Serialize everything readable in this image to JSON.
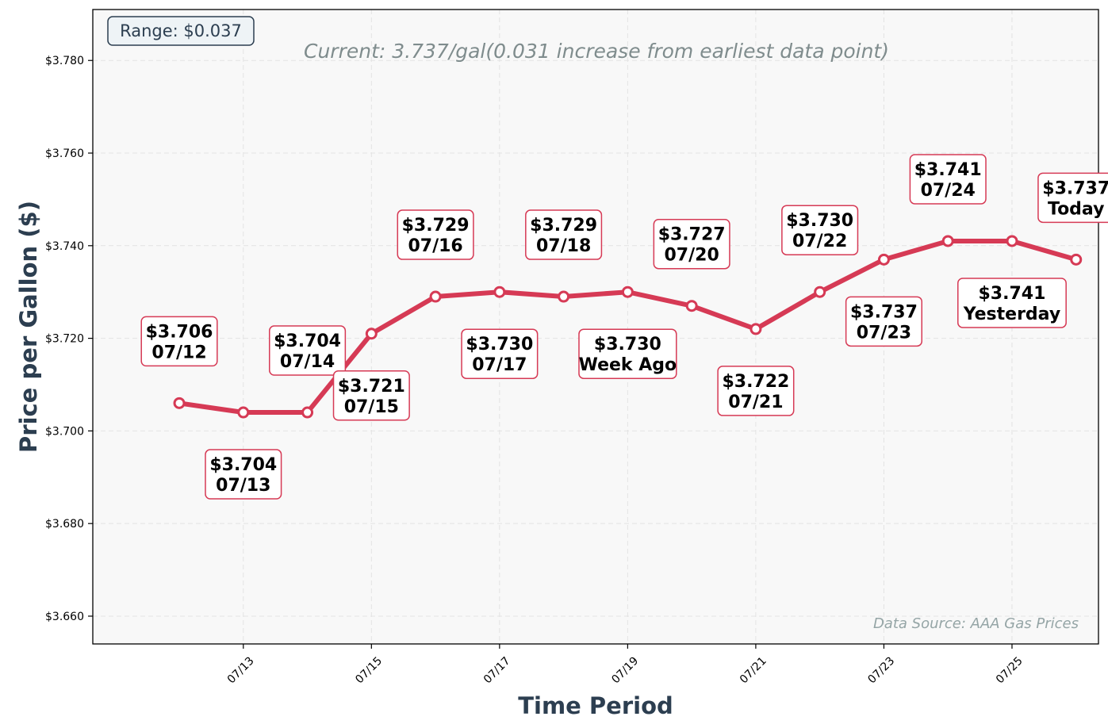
{
  "chart_data": {
    "type": "line",
    "title": "",
    "xlabel": "Time Period",
    "ylabel": "Price per Gallon ($)",
    "subtitle": "Current: 3.737/gal(0.031 increase from earliest data point)",
    "range_text": "Range: $0.037",
    "source_text": "Data Source: AAA Gas Prices",
    "xlim": [
      "07/11",
      "07/26"
    ],
    "ylim": [
      3.654,
      3.791
    ],
    "grid": true,
    "line_color": "#d63a55",
    "x_ticks": [
      "07/13",
      "07/15",
      "07/17",
      "07/19",
      "07/21",
      "07/23",
      "07/25"
    ],
    "y_ticks": [
      "$3.660",
      "$3.680",
      "$3.700",
      "$3.720",
      "$3.740",
      "$3.760",
      "$3.780"
    ],
    "series": [
      {
        "points": [
          {
            "x": "07/12",
            "y": 3.706,
            "label_price": "$3.706",
            "label_name": "07/12",
            "label_pos": "above"
          },
          {
            "x": "07/13",
            "y": 3.704,
            "label_price": "$3.704",
            "label_name": "07/13",
            "label_pos": "below"
          },
          {
            "x": "07/14",
            "y": 3.704,
            "label_price": "$3.704",
            "label_name": "07/14",
            "label_pos": "above"
          },
          {
            "x": "07/15",
            "y": 3.721,
            "label_price": "$3.721",
            "label_name": "07/15",
            "label_pos": "below"
          },
          {
            "x": "07/16",
            "y": 3.729,
            "label_price": "$3.729",
            "label_name": "07/16",
            "label_pos": "above"
          },
          {
            "x": "07/17",
            "y": 3.73,
            "label_price": "$3.730",
            "label_name": "07/17",
            "label_pos": "below"
          },
          {
            "x": "07/18",
            "y": 3.729,
            "label_price": "$3.729",
            "label_name": "07/18",
            "label_pos": "above"
          },
          {
            "x": "07/19",
            "y": 3.73,
            "label_price": "$3.730",
            "label_name": "Week Ago",
            "label_pos": "below"
          },
          {
            "x": "07/20",
            "y": 3.727,
            "label_price": "$3.727",
            "label_name": "07/20",
            "label_pos": "above"
          },
          {
            "x": "07/21",
            "y": 3.722,
            "label_price": "$3.722",
            "label_name": "07/21",
            "label_pos": "below"
          },
          {
            "x": "07/22",
            "y": 3.73,
            "label_price": "$3.730",
            "label_name": "07/22",
            "label_pos": "above"
          },
          {
            "x": "07/23",
            "y": 3.737,
            "label_price": "$3.737",
            "label_name": "07/23",
            "label_pos": "below"
          },
          {
            "x": "07/24",
            "y": 3.741,
            "label_price": "$3.741",
            "label_name": "07/24",
            "label_pos": "above"
          },
          {
            "x": "07/25",
            "y": 3.741,
            "label_price": "$3.741",
            "label_name": "Yesterday",
            "label_pos": "below"
          },
          {
            "x": "07/26",
            "y": 3.737,
            "label_price": "$3.737",
            "label_name": "Today",
            "label_pos": "above"
          }
        ]
      }
    ]
  }
}
